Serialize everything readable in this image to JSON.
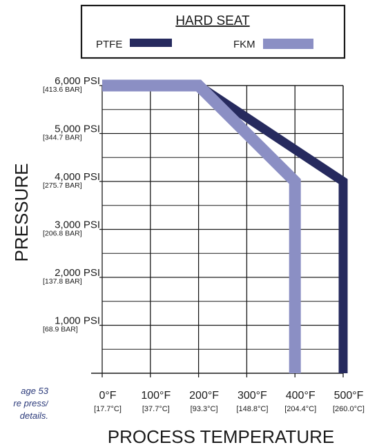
{
  "chart_data": {
    "type": "line",
    "legend": {
      "title": "HARD SEAT",
      "position": "top",
      "entries": [
        {
          "label": "PTFE",
          "color": "#262a5e"
        },
        {
          "label": "FKM",
          "color": "#8b8fc4"
        }
      ]
    },
    "xlabel": "PROCESS TEMPERATURE",
    "ylabel": "PRESSURE",
    "xlim": [
      0,
      500
    ],
    "ylim": [
      0,
      6000
    ],
    "grid": true,
    "x_ticks": [
      {
        "value": 0,
        "label": "0°F",
        "sub": "[17.7°C]"
      },
      {
        "value": 100,
        "label": "100°F",
        "sub": "[37.7°C]"
      },
      {
        "value": 200,
        "label": "200°F",
        "sub": "[93.3°C]"
      },
      {
        "value": 300,
        "label": "300°F",
        "sub": "[148.8°C]"
      },
      {
        "value": 400,
        "label": "400°F",
        "sub": "[204.4°C]"
      },
      {
        "value": 500,
        "label": "500°F",
        "sub": "[260.0°C]"
      }
    ],
    "y_ticks": [
      {
        "value": 1000,
        "label": "1,000 PSI",
        "sub": "[68.9 BAR]"
      },
      {
        "value": 2000,
        "label": "2,000 PSI",
        "sub": "[137.8 BAR]"
      },
      {
        "value": 3000,
        "label": "3,000 PSI",
        "sub": "[206.8 BAR]"
      },
      {
        "value": 4000,
        "label": "4,000 PSI",
        "sub": "[275.7 BAR]"
      },
      {
        "value": 5000,
        "label": "5,000 PSI",
        "sub": "[344.7 BAR]"
      },
      {
        "value": 6000,
        "label": "6,000 PSI",
        "sub": "[413.6 BAR]"
      }
    ],
    "series": [
      {
        "name": "PTFE",
        "color": "#262a5e",
        "points": [
          [
            0,
            6000
          ],
          [
            200,
            6000
          ],
          [
            500,
            4000
          ],
          [
            500,
            0
          ]
        ]
      },
      {
        "name": "FKM",
        "color": "#8b8fc4",
        "points": [
          [
            0,
            6000
          ],
          [
            200,
            6000
          ],
          [
            400,
            4000
          ],
          [
            400,
            0
          ]
        ]
      }
    ]
  },
  "side_note_lines": [
    "age 53",
    "re press/",
    "details."
  ]
}
